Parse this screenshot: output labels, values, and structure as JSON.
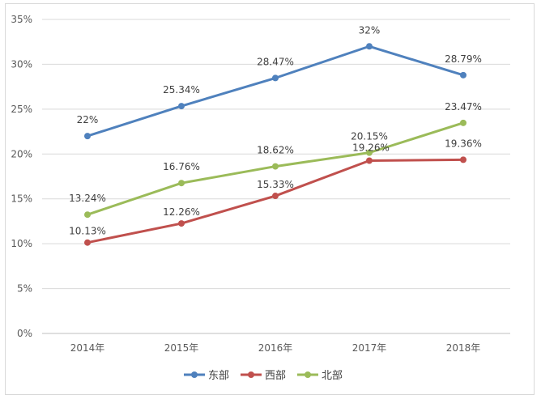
{
  "chart_data": {
    "type": "line",
    "title": "",
    "xlabel": "",
    "ylabel": "",
    "categories": [
      "2014年",
      "2015年",
      "2016年",
      "2017年",
      "2018年"
    ],
    "y_ticks": [
      "0%",
      "5%",
      "10%",
      "15%",
      "20%",
      "25%",
      "30%",
      "35%"
    ],
    "ylim": [
      0,
      35
    ],
    "grid": "horizontal",
    "legend_position": "bottom",
    "series": [
      {
        "name": "东部",
        "color": "#4f81bd",
        "values": [
          22,
          25.34,
          28.47,
          32,
          28.79
        ],
        "labels": [
          "22%",
          "25.34%",
          "28.47%",
          "32%",
          "28.79%"
        ]
      },
      {
        "name": "西部",
        "color": "#c0504d",
        "values": [
          10.13,
          12.26,
          15.33,
          19.26,
          19.36
        ],
        "labels": [
          "10.13%",
          "12.26%",
          "15.33%",
          "19.26%",
          "19.36%"
        ]
      },
      {
        "name": "北部",
        "color": "#9bbb59",
        "values": [
          13.24,
          16.76,
          18.62,
          20.15,
          23.47
        ],
        "labels": [
          "13.24%",
          "16.76%",
          "18.62%",
          "20.15%",
          "23.47%"
        ]
      }
    ]
  }
}
